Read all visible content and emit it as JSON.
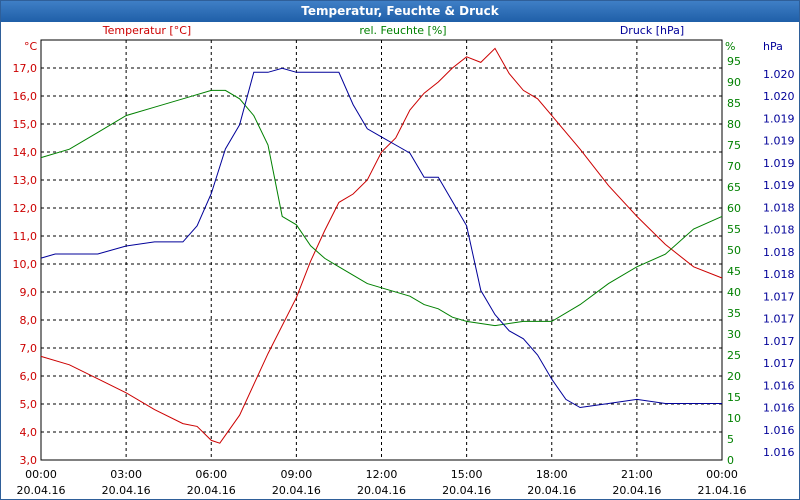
{
  "window": {
    "title": "Temperatur, Feuchte & Druck"
  },
  "legend": {
    "temperature": "Temperatur [°C]",
    "humidity": "rel. Feuchte [%]",
    "pressure": "Druck [hPa]"
  },
  "axis_units": {
    "left": "°C",
    "right1": "%",
    "right2": "hPa"
  },
  "colors": {
    "temperature": "#cc0000",
    "humidity": "#008000",
    "pressure": "#000099",
    "title_bg": "#1f5fa8",
    "grid": "#000000"
  },
  "chart_data": {
    "type": "line",
    "title": "Temperatur, Feuchte & Druck",
    "grid": true,
    "x_range": [
      "2016-04-20 00:00",
      "2016-04-21 00:00"
    ],
    "x_ticks": [
      {
        "time": "00:00",
        "date": "20.04.16"
      },
      {
        "time": "03:00",
        "date": "20.04.16"
      },
      {
        "time": "06:00",
        "date": "20.04.16"
      },
      {
        "time": "09:00",
        "date": "20.04.16"
      },
      {
        "time": "12:00",
        "date": "20.04.16"
      },
      {
        "time": "15:00",
        "date": "20.04.16"
      },
      {
        "time": "18:00",
        "date": "20.04.16"
      },
      {
        "time": "21:00",
        "date": "20.04.16"
      },
      {
        "time": "00:00",
        "date": "21.04.16"
      }
    ],
    "y_left": {
      "unit": "°C",
      "range": [
        3.0,
        18.0
      ],
      "ticks": [
        "17,0",
        "16,0",
        "15,0",
        "14,0",
        "13,0",
        "12,0",
        "11,0",
        "10,0",
        "9,0",
        "8,0",
        "7,0",
        "6,0",
        "5,0",
        "4,0",
        "3,0"
      ]
    },
    "y_right1": {
      "unit": "%",
      "range": [
        0,
        100
      ],
      "ticks": [
        "95",
        "90",
        "85",
        "80",
        "75",
        "70",
        "65",
        "60",
        "55",
        "50",
        "45",
        "40",
        "35",
        "30",
        "25",
        "20",
        "15",
        "10",
        "5",
        "0"
      ]
    },
    "y_right2": {
      "unit": "hPa",
      "range": [
        1015.6,
        1020.8
      ],
      "ticks": [
        "1.020",
        "1.020",
        "1.019",
        "1.019",
        "1.019",
        "1.019",
        "1.018",
        "1.018",
        "1.018",
        "1.018",
        "1.017",
        "1.017",
        "1.017",
        "1.017",
        "1.016",
        "1.016",
        "1.016",
        "1.016"
      ]
    },
    "series": [
      {
        "name": "Temperatur [°C]",
        "axis": "left",
        "hours": [
          0,
          1,
          2,
          3,
          4,
          5,
          5.5,
          6,
          6.3,
          7,
          8,
          9,
          9.5,
          10,
          10.5,
          11,
          11.5,
          12,
          12.5,
          13,
          13.5,
          14,
          14.5,
          15,
          15.5,
          16,
          16.5,
          17,
          17.5,
          18,
          19,
          20,
          21,
          22,
          23,
          24
        ],
        "values": [
          6.7,
          6.4,
          5.9,
          5.4,
          4.8,
          4.3,
          4.2,
          3.7,
          3.6,
          4.6,
          6.8,
          8.8,
          10.1,
          11.2,
          12.2,
          12.5,
          13.0,
          14.0,
          14.5,
          15.5,
          16.1,
          16.5,
          17.0,
          17.4,
          17.2,
          17.7,
          16.8,
          16.2,
          15.9,
          15.3,
          14.1,
          12.8,
          11.7,
          10.7,
          9.9,
          9.5
        ]
      },
      {
        "name": "rel. Feuchte [%]",
        "axis": "right1",
        "hours": [
          0,
          1,
          2,
          3,
          4,
          5,
          6,
          6.5,
          7,
          7.5,
          8,
          8.5,
          9,
          9.5,
          10,
          10.5,
          11,
          11.5,
          12,
          13,
          13.5,
          14,
          14.5,
          15,
          16,
          17,
          17.5,
          18,
          19,
          20,
          21,
          22,
          23,
          24
        ],
        "values": [
          72,
          74,
          78,
          82,
          84,
          86,
          88,
          88,
          86,
          82,
          75,
          58,
          56,
          51,
          48,
          46,
          44,
          42,
          41,
          39,
          37,
          36,
          34,
          33,
          32,
          33,
          33,
          33,
          37,
          42,
          46,
          49,
          55,
          58
        ]
      },
      {
        "name": "Druck [hPa]",
        "axis": "right2",
        "hours": [
          0,
          0.5,
          1,
          2,
          3,
          4,
          5,
          5.5,
          6,
          6.5,
          7,
          7.5,
          8,
          8.5,
          9,
          9.5,
          10,
          10.5,
          11,
          11.5,
          12,
          12.5,
          13,
          13.5,
          14,
          15,
          15.5,
          16,
          16.5,
          17,
          17.5,
          18,
          18.5,
          19,
          20,
          21,
          22,
          23,
          24
        ],
        "values": [
          1018.1,
          1018.15,
          1018.15,
          1018.15,
          1018.25,
          1018.3,
          1018.3,
          1018.5,
          1018.9,
          1019.45,
          1019.75,
          1020.4,
          1020.4,
          1020.45,
          1020.4,
          1020.4,
          1020.4,
          1020.4,
          1020.0,
          1019.7,
          1019.6,
          1019.5,
          1019.4,
          1019.1,
          1019.1,
          1018.5,
          1017.7,
          1017.4,
          1017.2,
          1017.1,
          1016.9,
          1016.6,
          1016.35,
          1016.25,
          1016.3,
          1016.35,
          1016.3,
          1016.3,
          1016.3
        ]
      }
    ]
  }
}
